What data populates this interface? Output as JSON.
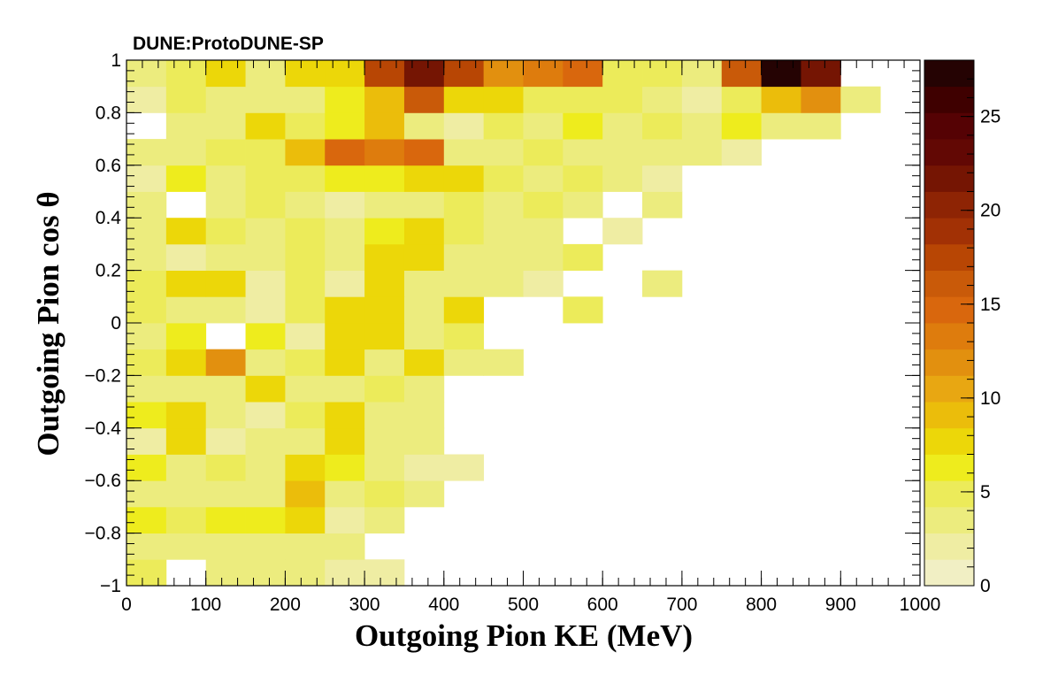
{
  "chart_data": {
    "type": "heatmap",
    "title": "DUNE:ProtoDUNE-SP",
    "xlabel": "Outgoing Pion KE (MeV)",
    "ylabel": "Outgoing Pion cos  θ",
    "xlim": [
      0,
      1000
    ],
    "ylim": [
      -1,
      1
    ],
    "zlim": [
      0,
      28
    ],
    "x_bin_edges": [
      0,
      50,
      100,
      150,
      200,
      250,
      300,
      350,
      400,
      450,
      500,
      550,
      600,
      650,
      700,
      750,
      800,
      850,
      900,
      950,
      1000
    ],
    "y_bin_edges": [
      -1.0,
      -0.9,
      -0.8,
      -0.7,
      -0.6,
      -0.5,
      -0.4,
      -0.3,
      -0.2,
      -0.1,
      0.0,
      0.1,
      0.2,
      0.3,
      0.4,
      0.5,
      0.6,
      0.7,
      0.8,
      0.9,
      1.0
    ],
    "x_ticks": [
      "0",
      "100",
      "200",
      "300",
      "400",
      "500",
      "600",
      "700",
      "800",
      "900",
      "1000"
    ],
    "y_ticks": [
      "−1",
      "−0.8",
      "−0.6",
      "−0.4",
      "−0.2",
      "0",
      "0.2",
      "0.4",
      "0.6",
      "0.8",
      "1"
    ],
    "z_ticks": [
      "0",
      "5",
      "10",
      "15",
      "20",
      "25"
    ],
    "colorbar_levels": 20,
    "colorbar_colors": [
      "#f1efc4",
      "#efeda3",
      "#ecec7e",
      "#eceb5a",
      "#eeec1d",
      "#ecd709",
      "#ebbd0b",
      "#e8a712",
      "#e2900f",
      "#de7c0d",
      "#d9670d",
      "#c95a09",
      "#b84604",
      "#a23105",
      "#8e2404",
      "#751503",
      "#620804",
      "#550204",
      "#3f0000",
      "#250303"
    ],
    "values": [
      [
        5,
        0,
        4,
        4,
        4,
        2,
        2,
        0,
        0,
        0,
        0,
        0,
        0,
        0,
        0,
        0,
        0,
        0,
        0,
        0
      ],
      [
        4,
        4,
        3,
        3,
        4,
        4,
        0,
        0,
        0,
        0,
        0,
        0,
        0,
        0,
        0,
        0,
        0,
        0,
        0,
        0
      ],
      [
        6,
        5,
        6,
        6,
        7,
        2,
        3,
        0,
        0,
        0,
        0,
        0,
        0,
        0,
        0,
        0,
        0,
        0,
        0,
        0
      ],
      [
        4,
        3,
        4,
        4,
        9,
        4,
        5,
        3,
        0,
        0,
        0,
        0,
        0,
        0,
        0,
        0,
        0,
        0,
        0,
        0
      ],
      [
        6,
        4,
        5,
        3,
        8,
        6,
        4,
        2,
        2,
        0,
        0,
        0,
        0,
        0,
        0,
        0,
        0,
        0,
        0,
        0
      ],
      [
        2,
        7,
        2,
        4,
        4,
        7,
        4,
        3,
        0,
        0,
        0,
        0,
        0,
        0,
        0,
        0,
        0,
        0,
        0,
        0
      ],
      [
        6,
        8,
        4,
        2,
        5,
        7,
        4,
        3,
        0,
        0,
        0,
        0,
        0,
        0,
        0,
        0,
        0,
        0,
        0,
        0
      ],
      [
        4,
        4,
        4,
        8,
        4,
        3,
        5,
        4,
        0,
        0,
        0,
        0,
        0,
        0,
        0,
        0,
        0,
        0,
        0,
        0
      ],
      [
        5,
        8,
        12,
        3,
        5,
        7,
        4,
        7,
        3,
        3,
        0,
        0,
        0,
        0,
        0,
        0,
        0,
        0,
        0,
        0
      ],
      [
        3,
        6,
        0,
        6,
        2,
        7,
        7,
        3,
        5,
        0,
        0,
        0,
        0,
        0,
        0,
        0,
        0,
        0,
        0,
        0
      ],
      [
        5,
        4,
        4,
        2,
        5,
        8,
        8,
        4,
        8,
        0,
        0,
        5,
        0,
        0,
        0,
        0,
        0,
        0,
        0,
        0
      ],
      [
        5,
        8,
        7,
        2,
        5,
        2,
        8,
        4,
        3,
        3,
        2,
        0,
        0,
        3,
        0,
        0,
        0,
        0,
        0,
        0
      ],
      [
        4,
        2,
        4,
        4,
        5,
        3,
        7,
        8,
        4,
        3,
        3,
        5,
        0,
        0,
        0,
        0,
        0,
        0,
        0,
        0
      ],
      [
        4,
        8,
        5,
        4,
        5,
        3,
        6,
        7,
        5,
        3,
        3,
        0,
        2,
        0,
        0,
        0,
        0,
        0,
        0,
        0
      ],
      [
        4,
        0,
        3,
        5,
        4,
        2,
        3,
        3,
        5,
        4,
        5,
        3,
        0,
        4,
        0,
        0,
        0,
        0,
        0,
        0
      ],
      [
        2,
        6,
        3,
        5,
        5,
        6,
        6,
        8,
        8,
        5,
        4,
        5,
        3,
        2,
        0,
        0,
        0,
        0,
        0,
        0
      ],
      [
        4,
        4,
        5,
        5,
        9,
        15,
        13,
        15,
        4,
        3,
        5,
        3,
        3,
        3,
        4,
        2,
        0,
        0,
        0,
        0
      ],
      [
        0,
        4,
        4,
        7,
        5,
        6,
        9,
        4,
        2,
        5,
        3,
        6,
        4,
        5,
        3,
        6,
        4,
        4,
        0,
        0
      ],
      [
        2,
        5,
        3,
        4,
        3,
        6,
        9,
        16,
        7,
        7,
        5,
        5,
        5,
        4,
        2,
        5,
        9,
        12,
        3,
        0
      ],
      [
        4,
        5,
        7,
        3,
        8,
        7,
        17,
        22,
        18,
        12,
        13,
        14,
        5,
        5,
        4,
        16,
        28,
        21,
        0,
        0
      ]
    ]
  }
}
